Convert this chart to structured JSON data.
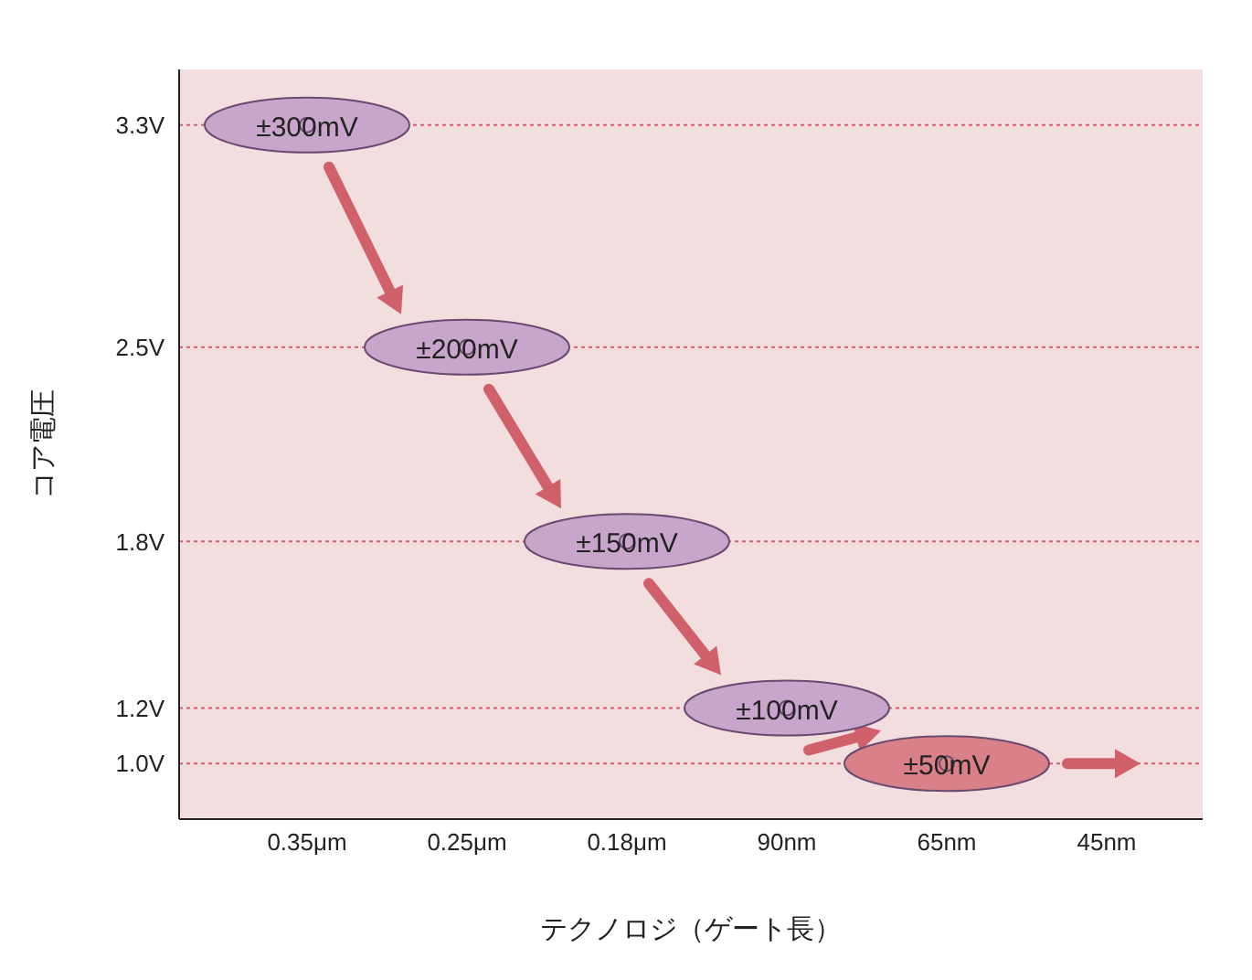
{
  "chart_data": {
    "type": "scatter",
    "xlabel": "テクノロジ（ゲート長）",
    "ylabel": "コア電圧",
    "categories": [
      "0.35μm",
      "0.25μm",
      "0.18μm",
      "90nm",
      "65nm",
      "45nm"
    ],
    "values": [
      3.3,
      2.5,
      1.8,
      1.2,
      1.0,
      null
    ],
    "annotations": [
      {
        "text": "±300mV",
        "x": "0.35μm",
        "y": 3.3
      },
      {
        "text": "±200mV",
        "x": "0.25μm",
        "y": 2.5
      },
      {
        "text": "±150mV",
        "x": "0.18μm",
        "y": 1.8
      },
      {
        "text": "±100mV",
        "x": "90nm",
        "y": 1.2
      },
      {
        "text": "±50mV",
        "x": "65nm",
        "y": 1.0
      }
    ],
    "colors": [
      "#c8a6cb",
      "#c8a6cb",
      "#c8a6cb",
      "#c8a6cb",
      "#d98088",
      null
    ],
    "ylim": [
      0.8,
      3.5
    ],
    "yticks": [
      {
        "value": 3.3,
        "label": "3.3V"
      },
      {
        "value": 2.5,
        "label": "2.5V"
      },
      {
        "value": 1.8,
        "label": "1.8V"
      },
      {
        "value": 1.2,
        "label": "1.2V"
      },
      {
        "value": 1.0,
        "label": "1.0V"
      }
    ],
    "grid": "y",
    "marker": "circle"
  }
}
